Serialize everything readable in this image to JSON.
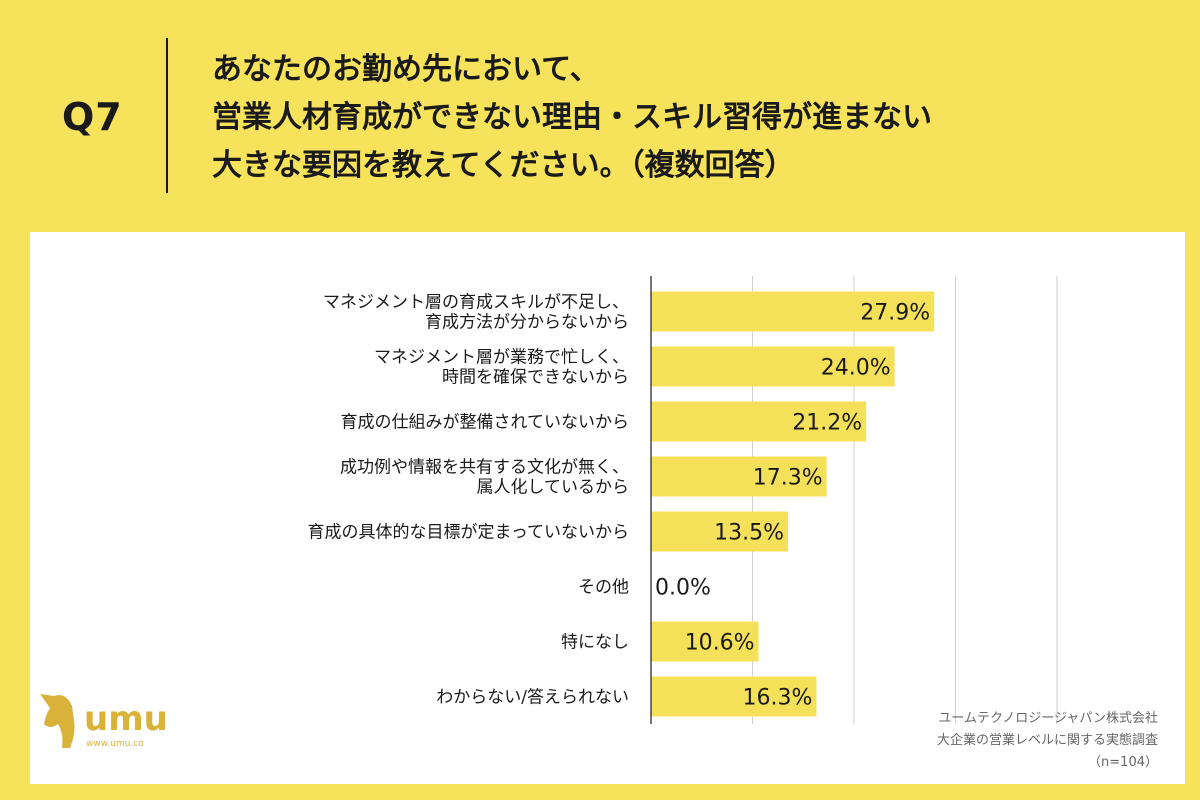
{
  "question": {
    "label": "Q7",
    "lines": [
      "あなたのお勤め先において、",
      "営業人材育成ができない理由・スキル習得が進まない",
      "大きな要因を教えてください。（複数回答）"
    ]
  },
  "chart_data": {
    "type": "bar",
    "orientation": "horizontal",
    "categories": [
      [
        "マネジメント層の育成スキルが不足し、",
        "育成方法が分からないから"
      ],
      [
        "マネジメント層が業務で忙しく、",
        "時間を確保できないから"
      ],
      [
        "育成の仕組みが整備されていないから"
      ],
      [
        "成功例や情報を共有する文化が無く、",
        "属人化しているから"
      ],
      [
        "育成の具体的な目標が定まっていないから"
      ],
      [
        "その他"
      ],
      [
        "特になし"
      ],
      [
        "わからない/答えられない"
      ]
    ],
    "values": [
      27.9,
      24.0,
      21.2,
      17.3,
      13.5,
      0.0,
      10.6,
      16.3
    ],
    "value_labels": [
      "27.9%",
      "24.0%",
      "21.2%",
      "17.3%",
      "13.5%",
      "0.0%",
      "10.6%",
      "16.3%"
    ],
    "xlim": [
      0,
      40
    ],
    "gridlines": [
      0,
      10,
      20,
      30,
      40
    ],
    "bar_color": "#f5e05a"
  },
  "logo": {
    "text": "umu",
    "url_text": "www.umu.co",
    "color": "#d9b23a"
  },
  "source": {
    "company": "ユームテクノロジージャパン株式会社",
    "survey": "大企業の営業レベルに関する実態調査",
    "n": "（n=104）"
  }
}
